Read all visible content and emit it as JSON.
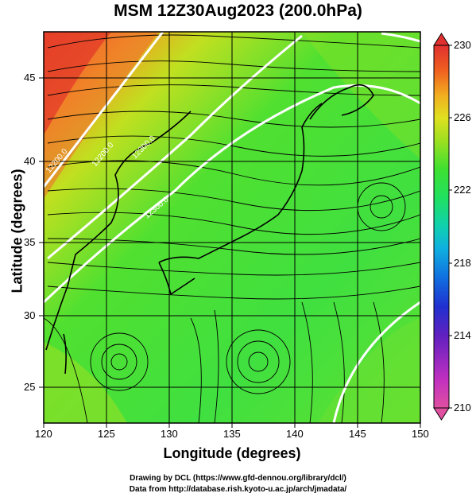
{
  "title": "MSM 12Z30Aug2023 (200.0hPa)",
  "xlabel": "Longitude (degrees)",
  "ylabel": "Latitude  (degrees)",
  "xticks": [
    "120",
    "125",
    "130",
    "135",
    "140",
    "145",
    "150"
  ],
  "yticks": [
    "25",
    "30",
    "35",
    "40",
    "45"
  ],
  "colorbar": {
    "ticks": [
      "230",
      "226",
      "222",
      "218",
      "214",
      "210"
    ],
    "colors": [
      "#e0509a",
      "#c030c0",
      "#7020c0",
      "#2030d0",
      "#1070e0",
      "#10b0e0",
      "#10d0b0",
      "#20e070",
      "#40e030",
      "#90e020",
      "#d0e020",
      "#f0c020",
      "#f08020",
      "#f04020",
      "#e02020"
    ]
  },
  "contour_labels": [
    "12200.0",
    "12200.0",
    "12300.0",
    "12300.0"
  ],
  "credit": {
    "line1": "Drawing by DCL (https://www.gfd-dennou.org/library/dcl/)",
    "line2": "Data from http://database.rish.kyoto-u.ac.jp/arch/jmadata/"
  },
  "map_data": {
    "lon_range": [
      120,
      150
    ],
    "lat_range": [
      23,
      48
    ],
    "field": "temperature-like shaded field, 210-230 scale",
    "features": [
      "streamlines",
      "coastlines",
      "contours",
      "lat-lon grid"
    ]
  }
}
